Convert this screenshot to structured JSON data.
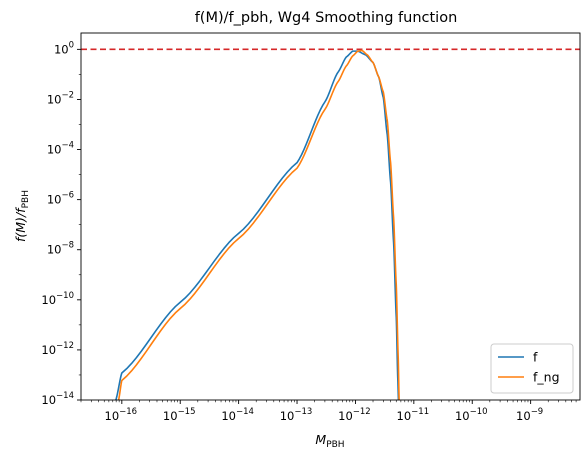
{
  "chart_data": {
    "type": "line",
    "title": "f(M)/f_pbh, Wg4 Smoothing function",
    "xlabel": {
      "base": "M",
      "sub": "PBH"
    },
    "ylabel": {
      "pre": "f(M)/",
      "var": "f",
      "sub": "PBH"
    },
    "x_scale": "log",
    "y_scale": "log",
    "xlim": [
      2e-17,
      7e-09
    ],
    "ylim": [
      1e-14,
      4.5
    ],
    "x_ticks": [
      {
        "exp": -16,
        "label": "10^-16"
      },
      {
        "exp": -15,
        "label": "10^-15"
      },
      {
        "exp": -14,
        "label": "10^-14"
      },
      {
        "exp": -13,
        "label": "10^-13"
      },
      {
        "exp": -12,
        "label": "10^-12"
      },
      {
        "exp": -11,
        "label": "10^-11"
      },
      {
        "exp": -10,
        "label": "10^-10"
      },
      {
        "exp": -9,
        "label": "10^-9"
      }
    ],
    "y_ticks": [
      {
        "exp": 0,
        "label": "10^0"
      },
      {
        "exp": -2,
        "label": "10^-2"
      },
      {
        "exp": -4,
        "label": "10^-4"
      },
      {
        "exp": -6,
        "label": "10^-6"
      },
      {
        "exp": -8,
        "label": "10^-8"
      },
      {
        "exp": -10,
        "label": "10^-10"
      },
      {
        "exp": -12,
        "label": "10^-12"
      },
      {
        "exp": -14,
        "label": "10^-14"
      }
    ],
    "hline": {
      "y": 1,
      "style": "dashed",
      "color": "#d62728"
    },
    "grid": false,
    "legend_position": "lower-right",
    "series": [
      {
        "name": "f",
        "color": "#1f77b4",
        "points": [
          [
            7.9e-17,
            1e-14
          ],
          [
            1e-16,
            1.2e-13
          ],
          [
            1e-15,
            8e-11
          ],
          [
            1e-14,
            4.5e-08
          ],
          [
            1e-13,
            3e-05
          ],
          [
            3e-13,
            0.008
          ],
          [
            5e-13,
            0.12
          ],
          [
            7e-13,
            0.5
          ],
          [
            9e-13,
            0.85
          ],
          [
            1.1e-12,
            0.85
          ],
          [
            1.5e-12,
            0.6
          ],
          [
            2e-12,
            0.3
          ],
          [
            2.5e-12,
            0.08
          ],
          [
            3e-12,
            0.012
          ],
          [
            3.5e-12,
            0.0004
          ],
          [
            4e-12,
            5e-06
          ],
          [
            4.5e-12,
            2e-08
          ],
          [
            5e-12,
            2e-11
          ],
          [
            5.3e-12,
            8e-14
          ],
          [
            5.45e-12,
            1e-14
          ]
        ]
      },
      {
        "name": "f_ng",
        "color": "#ff7f0e",
        "points": [
          [
            8.8e-17,
            1e-14
          ],
          [
            1e-16,
            6e-14
          ],
          [
            1e-15,
            4.5e-11
          ],
          [
            1e-14,
            2.8e-08
          ],
          [
            1e-13,
            1.8e-05
          ],
          [
            3e-13,
            0.004
          ],
          [
            5e-13,
            0.05
          ],
          [
            7e-13,
            0.22
          ],
          [
            9e-13,
            0.55
          ],
          [
            1.1e-12,
            0.85
          ],
          [
            1.3e-12,
            0.9
          ],
          [
            1.6e-12,
            0.6
          ],
          [
            2e-12,
            0.3
          ],
          [
            2.5e-12,
            0.08
          ],
          [
            3e-12,
            0.02
          ],
          [
            3.5e-12,
            0.0015
          ],
          [
            4e-12,
            3e-05
          ],
          [
            4.5e-12,
            2e-07
          ],
          [
            5e-12,
            4e-10
          ],
          [
            5.4e-12,
            5e-13
          ],
          [
            5.6e-12,
            1e-14
          ]
        ]
      }
    ]
  }
}
